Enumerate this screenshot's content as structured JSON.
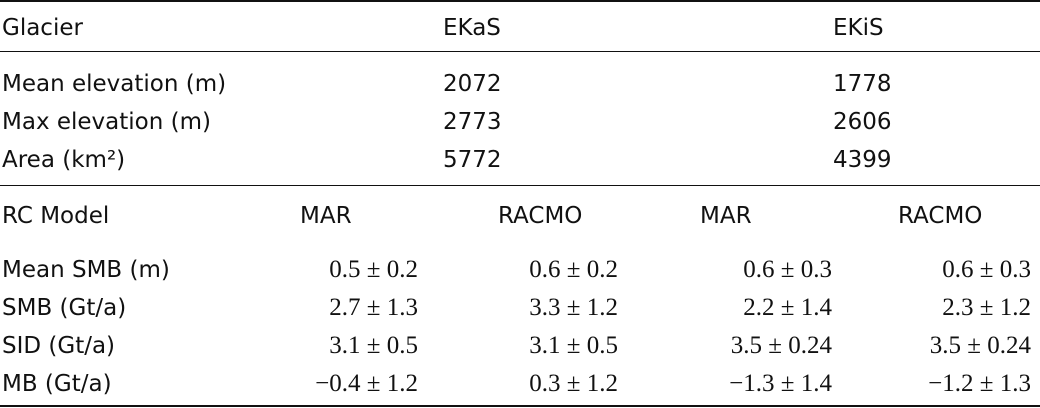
{
  "table": {
    "header": [
      "Glacier",
      "EKaS",
      "EKiS"
    ],
    "rows": [
      [
        "Mean elevation (m)",
        "2072",
        "1778"
      ],
      [
        "Max elevation (m)",
        "2773",
        "2606"
      ],
      [
        "Area (km²)",
        "5772",
        "4399"
      ]
    ],
    "model_header": [
      "RC Model",
      "MAR",
      "RACMO",
      "MAR",
      "RACMO"
    ],
    "model_rows": [
      [
        "Mean SMB (m)",
        "0.5 ± 0.2",
        "0.6 ± 0.2",
        "0.6 ± 0.3",
        "0.6 ± 0.3"
      ],
      [
        "SMB (Gt/a)",
        "2.7 ± 1.3",
        "3.3 ± 1.2",
        "2.2 ± 1.4",
        "2.3 ± 1.2"
      ],
      [
        "SID (Gt/a)",
        "3.1 ± 0.5",
        "3.1 ± 0.5",
        "3.5 ± 0.24",
        "3.5 ± 0.24"
      ],
      [
        "MB (Gt/a)",
        "−0.4 ± 1.2",
        "0.3 ± 1.2",
        "−1.3 ± 1.4",
        "−1.2 ± 1.3"
      ]
    ]
  }
}
